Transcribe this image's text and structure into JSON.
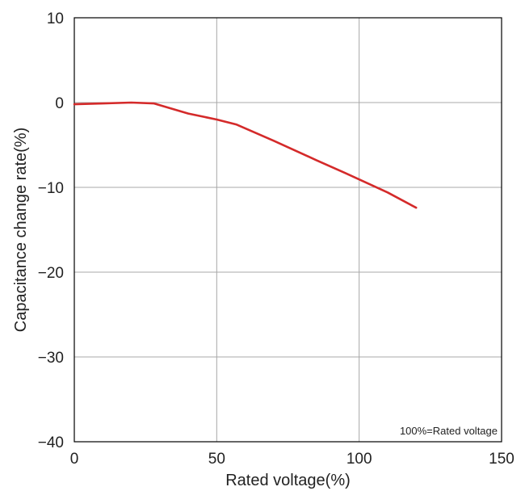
{
  "chart_data": {
    "type": "line",
    "title": "",
    "xlabel": "Rated voltage(%)",
    "ylabel": "Capacitance change rate(%)",
    "xlim": [
      0,
      150
    ],
    "ylim": [
      -40,
      10
    ],
    "x_ticks": [
      0,
      50,
      100,
      150
    ],
    "y_ticks": [
      10,
      0,
      -10,
      -20,
      -30,
      -40
    ],
    "x_tick_labels": [
      "0",
      "50",
      "100",
      "150"
    ],
    "y_tick_labels": [
      "10",
      "0",
      "−10",
      "−20",
      "−30",
      "−40"
    ],
    "grid": true,
    "legend": "none",
    "annotation": "100%=Rated voltage",
    "series": [
      {
        "color": "#d42a2a",
        "x": [
          0,
          10,
          20,
          28,
          40,
          50,
          57,
          70,
          85,
          95,
          110,
          120
        ],
        "y": [
          -0.2,
          -0.1,
          0.0,
          -0.1,
          -1.3,
          -2.0,
          -2.6,
          -4.5,
          -6.8,
          -8.3,
          -10.6,
          -12.4
        ]
      }
    ],
    "colors": {
      "grid": "#a8a8a8",
      "axis": "#000000",
      "text": "#222222"
    }
  }
}
